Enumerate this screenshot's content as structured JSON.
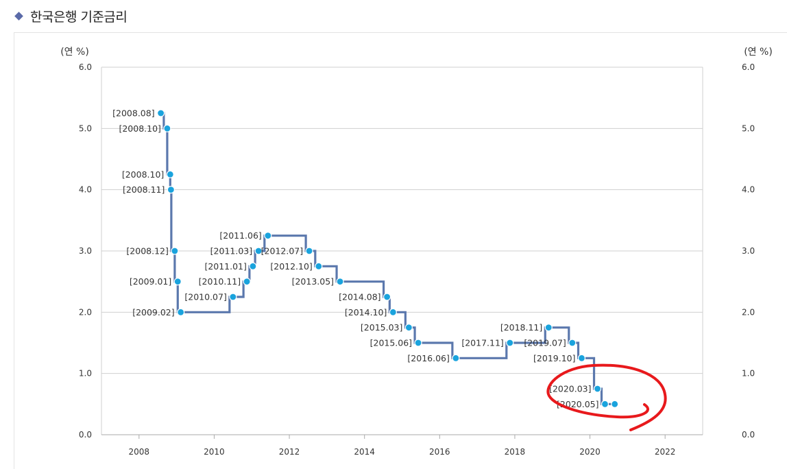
{
  "page": {
    "title": "한국은행 기준금리"
  },
  "colors": {
    "line": "#5b78ad",
    "marker": "#1aa3dd",
    "grid": "#cfcfcf",
    "annotation": "#e8191c",
    "title_icon": "#5a6aa8"
  },
  "icons": {
    "title_bullet": "diamond-icon"
  },
  "chart_data": {
    "type": "line",
    "step": true,
    "ylabel_left": "(연 %)",
    "ylabel_right": "(연 %)",
    "ylim": [
      0,
      6
    ],
    "xlim": [
      2007,
      2023
    ],
    "y_ticks": [
      "0.0",
      "1.0",
      "2.0",
      "3.0",
      "4.0",
      "5.0",
      "6.0"
    ],
    "x_ticks": [
      "2008",
      "2010",
      "2012",
      "2014",
      "2016",
      "2018",
      "2020",
      "2022"
    ],
    "grid": true,
    "points": [
      {
        "label": "[2008.08]",
        "x": 2008.58,
        "y": 5.25
      },
      {
        "label": "[2008.10]",
        "x": 2008.75,
        "y": 5.0
      },
      {
        "label": "[2008.10]",
        "x": 2008.83,
        "y": 4.25
      },
      {
        "label": "[2008.11]",
        "x": 2008.85,
        "y": 4.0
      },
      {
        "label": "[2008.12]",
        "x": 2008.95,
        "y": 3.0
      },
      {
        "label": "[2009.01]",
        "x": 2009.03,
        "y": 2.5
      },
      {
        "label": "[2009.02]",
        "x": 2009.11,
        "y": 2.0
      },
      {
        "label": "[2010.07]",
        "x": 2010.5,
        "y": 2.25
      },
      {
        "label": "[2010.11]",
        "x": 2010.87,
        "y": 2.5
      },
      {
        "label": "[2011.01]",
        "x": 2011.03,
        "y": 2.75
      },
      {
        "label": "[2011.03]",
        "x": 2011.18,
        "y": 3.0
      },
      {
        "label": "[2011.06]",
        "x": 2011.43,
        "y": 3.25
      },
      {
        "label": "[2012.07]",
        "x": 2012.53,
        "y": 3.0
      },
      {
        "label": "[2012.10]",
        "x": 2012.78,
        "y": 2.75
      },
      {
        "label": "[2013.05]",
        "x": 2013.35,
        "y": 2.5
      },
      {
        "label": "[2014.08]",
        "x": 2014.6,
        "y": 2.25
      },
      {
        "label": "[2014.10]",
        "x": 2014.76,
        "y": 2.0
      },
      {
        "label": "[2015.03]",
        "x": 2015.18,
        "y": 1.75
      },
      {
        "label": "[2015.06]",
        "x": 2015.43,
        "y": 1.5
      },
      {
        "label": "[2016.06]",
        "x": 2016.43,
        "y": 1.25
      },
      {
        "label": "[2017.11]",
        "x": 2017.87,
        "y": 1.5
      },
      {
        "label": "[2018.11]",
        "x": 2018.9,
        "y": 1.75
      },
      {
        "label": "[2019.07]",
        "x": 2019.53,
        "y": 1.5
      },
      {
        "label": "[2019.10]",
        "x": 2019.78,
        "y": 1.25
      },
      {
        "label": "[2020.03]",
        "x": 2020.2,
        "y": 0.75
      },
      {
        "label": "[2020.05]",
        "x": 2020.4,
        "y": 0.5
      },
      {
        "label": "",
        "x": 2020.66,
        "y": 0.5
      }
    ]
  }
}
